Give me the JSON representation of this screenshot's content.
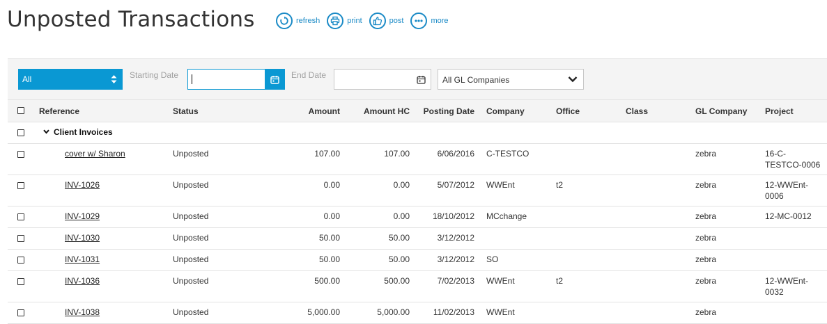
{
  "page": {
    "title": "Unposted Transactions"
  },
  "actions": [
    {
      "icon": "refresh-icon",
      "label": "refresh"
    },
    {
      "icon": "print-icon",
      "label": "print"
    },
    {
      "icon": "thumbs-up-icon",
      "label": "post"
    },
    {
      "icon": "more-icon",
      "label": "more"
    }
  ],
  "filters": {
    "type_select": "All",
    "starting_date_label": "Starting Date",
    "starting_date_value": "",
    "end_date_label": "End Date",
    "end_date_value": "",
    "gl_company_select": "All GL Companies"
  },
  "table": {
    "columns": {
      "reference": "Reference",
      "status": "Status",
      "amount": "Amount",
      "amount_hc": "Amount HC",
      "posting_date": "Posting Date",
      "company": "Company",
      "office": "Office",
      "class": "Class",
      "gl_company": "GL Company",
      "project": "Project"
    },
    "group": {
      "label": "Client Invoices"
    },
    "rows": [
      {
        "reference": "cover w/ Sharon",
        "status": "Unposted",
        "amount": "107.00",
        "amount_hc": "107.00",
        "posting_date": "6/06/2016",
        "company": "C-TESTCO",
        "office": "",
        "class": "",
        "gl_company": "zebra",
        "project": "16-C-\nTESTCO-0006"
      },
      {
        "reference": "INV-1026",
        "status": "Unposted",
        "amount": "0.00",
        "amount_hc": "0.00",
        "posting_date": "5/07/2012",
        "company": "WWEnt",
        "office": "t2",
        "class": "",
        "gl_company": "zebra",
        "project": "12-WWEnt-\n0006"
      },
      {
        "reference": "INV-1029",
        "status": "Unposted",
        "amount": "0.00",
        "amount_hc": "0.00",
        "posting_date": "18/10/2012",
        "company": "MCchange",
        "office": "",
        "class": "",
        "gl_company": "zebra",
        "project": "12-MC-0012"
      },
      {
        "reference": "INV-1030",
        "status": "Unposted",
        "amount": "50.00",
        "amount_hc": "50.00",
        "posting_date": "3/12/2012",
        "company": "",
        "office": "",
        "class": "",
        "gl_company": "zebra",
        "project": ""
      },
      {
        "reference": "INV-1031",
        "status": "Unposted",
        "amount": "50.00",
        "amount_hc": "50.00",
        "posting_date": "3/12/2012",
        "company": "SO",
        "office": "",
        "class": "",
        "gl_company": "zebra",
        "project": ""
      },
      {
        "reference": "INV-1036",
        "status": "Unposted",
        "amount": "500.00",
        "amount_hc": "500.00",
        "posting_date": "7/02/2013",
        "company": "WWEnt",
        "office": "t2",
        "class": "",
        "gl_company": "zebra",
        "project": "12-WWEnt-\n0032"
      },
      {
        "reference": "INV-1038",
        "status": "Unposted",
        "amount": "5,000.00",
        "amount_hc": "5,000.00",
        "posting_date": "11/02/2013",
        "company": "WWEnt",
        "office": "",
        "class": "",
        "gl_company": "zebra",
        "project": ""
      }
    ]
  },
  "colors": {
    "accent": "#0a98d3",
    "action_blue": "#1a8ac6"
  }
}
